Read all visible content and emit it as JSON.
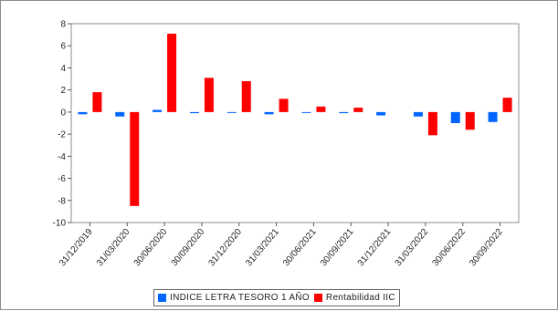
{
  "chart_data": {
    "type": "bar",
    "categories": [
      "31/12/2019",
      "31/03/2020",
      "30/06/2020",
      "30/09/2020",
      "31/12/2020",
      "31/03/2021",
      "30/06/2021",
      "30/09/2021",
      "31/12/2021",
      "31/03/2022",
      "30/06/2022",
      "30/09/2022"
    ],
    "series": [
      {
        "name": "INDICE LETRA TESORO 1 AÑO",
        "color": "#0066ff",
        "values": [
          -0.2,
          -0.4,
          0.2,
          -0.1,
          -0.05,
          -0.2,
          -0.05,
          -0.1,
          -0.3,
          -0.4,
          -1.0,
          -0.9
        ]
      },
      {
        "name": "Rentabilidad IIC",
        "color": "#ff0000",
        "values": [
          1.8,
          -8.5,
          7.1,
          3.1,
          2.8,
          1.2,
          0.5,
          0.4,
          0.0,
          -2.1,
          -1.6,
          1.3
        ]
      }
    ],
    "ylim": [
      -10,
      8
    ],
    "yticks": [
      8,
      6,
      4,
      2,
      0,
      -2,
      -4,
      -6,
      -8,
      -10
    ],
    "legend_position": "bottom",
    "grid": false
  }
}
